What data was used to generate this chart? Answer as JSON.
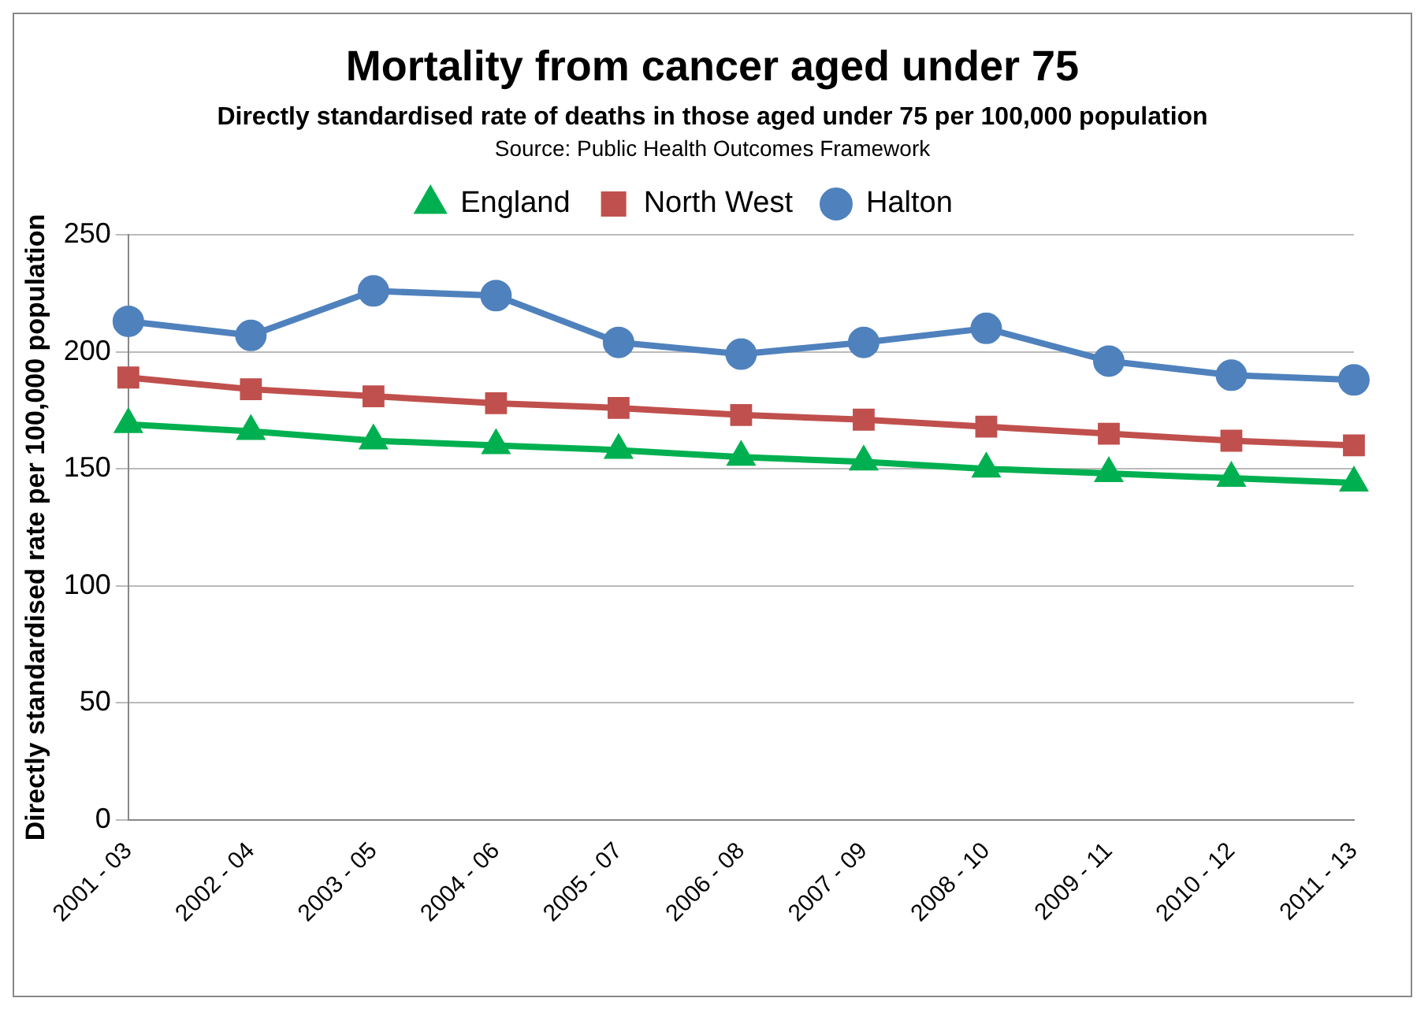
{
  "chart_data": {
    "type": "line",
    "title": "Mortality from cancer aged under 75",
    "subtitle": "Directly standardised rate of deaths in those aged under 75 per 100,000 population",
    "annotations": [
      "Source: Public Health Outcomes  Framework"
    ],
    "ylabel": "Directly standardised rate per 100,000 population",
    "categories": [
      "2001 - 03",
      "2002 - 04",
      "2003 - 05",
      "2004 - 06",
      "2005 - 07",
      "2006 - 08",
      "2007 - 09",
      "2008 - 10",
      "2009 - 11",
      "2010 - 12",
      "2011 - 13"
    ],
    "series": [
      {
        "name": "England",
        "color": "#00b050",
        "marker": "triangle",
        "values": [
          169,
          166,
          162,
          160,
          158,
          155,
          153,
          150,
          148,
          146,
          144
        ]
      },
      {
        "name": "North West",
        "color": "#c0504d",
        "marker": "square",
        "values": [
          189,
          184,
          181,
          178,
          176,
          173,
          171,
          168,
          165,
          162,
          160
        ]
      },
      {
        "name": "Halton",
        "color": "#4f81bd",
        "marker": "circle",
        "values": [
          213,
          207,
          226,
          224,
          204,
          199,
          204,
          210,
          196,
          190,
          188
        ]
      }
    ],
    "ylim": [
      0,
      250
    ],
    "yticks": [
      0,
      50,
      100,
      150,
      200,
      250
    ],
    "grid": "y",
    "legend": "top"
  }
}
